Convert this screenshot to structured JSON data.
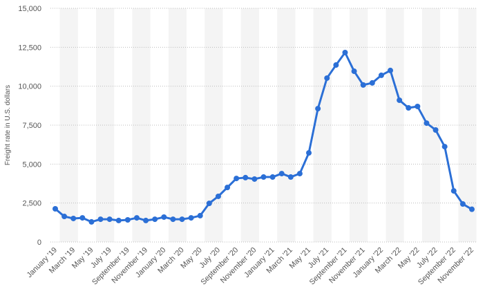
{
  "chart_data": {
    "type": "line",
    "y_label": "Freight rate in U.S. dollars",
    "categories": [
      "January '19",
      null,
      "March '19",
      null,
      "May '19",
      null,
      "July '19",
      null,
      "September '19",
      null,
      "November '19",
      null,
      "January '20",
      null,
      "March '20",
      null,
      "May '20",
      null,
      "July '20",
      null,
      "September '20",
      null,
      "November '20",
      null,
      "January '21",
      null,
      "March '21",
      null,
      "May '21",
      null,
      "July '21",
      null,
      "September '21",
      null,
      "November '21",
      null,
      "January '22",
      null,
      "March '22",
      null,
      "May '22",
      null,
      "July '22",
      null,
      "September '22",
      null,
      "November '22"
    ],
    "series": [
      {
        "name": "Freight rate",
        "color": "#2b6fd6",
        "values": [
          2130,
          1640,
          1510,
          1550,
          1290,
          1460,
          1460,
          1380,
          1420,
          1550,
          1380,
          1460,
          1600,
          1460,
          1460,
          1550,
          1690,
          2480,
          2930,
          3500,
          4080,
          4130,
          4040,
          4170,
          4170,
          4390,
          4170,
          4390,
          5720,
          8560,
          10520,
          11360,
          12160,
          10960,
          10080,
          10210,
          10700,
          11010,
          9100,
          8610,
          8700,
          7630,
          7190,
          6120,
          3280,
          2440,
          2100
        ]
      }
    ],
    "ylim": [
      0,
      15000
    ],
    "yticks": [
      0,
      {
        "value": 2500,
        "label": "2,500"
      },
      {
        "value": 5000,
        "label": "5,000"
      },
      {
        "value": 7500,
        "label": "7,500"
      },
      {
        "value": 10000,
        "label": "10,000"
      },
      {
        "value": 12500,
        "label": "12,500"
      },
      {
        "value": 15000,
        "label": "15,000"
      }
    ],
    "grid": true
  }
}
